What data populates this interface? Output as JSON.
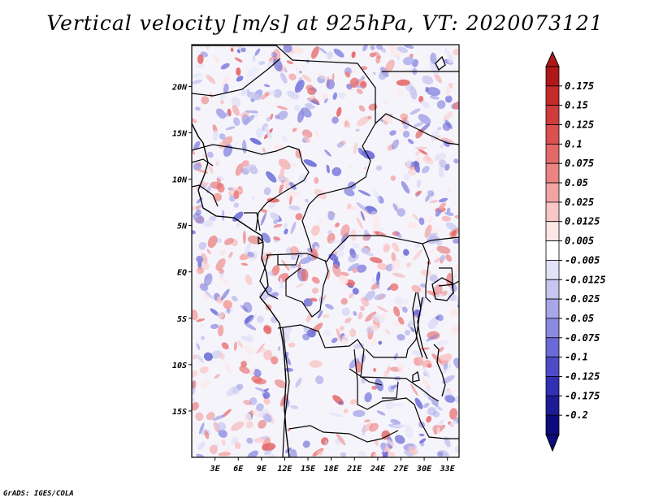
{
  "title": "Vertical velocity [m/s] at 925hPa, VT: 2020073121",
  "credit": "GrADS: IGES/COLA",
  "map": {
    "lat_labels": [
      "20N",
      "15N",
      "10N",
      "5N",
      "EQ",
      "5S",
      "10S",
      "15S"
    ],
    "lat_values": [
      20,
      15,
      10,
      5,
      0,
      -5,
      -10,
      -15
    ],
    "lon_labels": [
      "3E",
      "6E",
      "9E",
      "12E",
      "15E",
      "18E",
      "21E",
      "24E",
      "27E",
      "30E",
      "33E"
    ],
    "lon_values": [
      3,
      6,
      9,
      12,
      15,
      18,
      21,
      24,
      27,
      30,
      33
    ],
    "lon_range": [
      0,
      34.5
    ],
    "lat_range": [
      -20,
      24.5
    ]
  },
  "colorbar": {
    "labels": [
      "0.175",
      "0.15",
      "0.125",
      "0.1",
      "0.075",
      "0.05",
      "0.025",
      "0.0125",
      "0.005",
      "-0.005",
      "-0.0125",
      "-0.025",
      "-0.05",
      "-0.075",
      "-0.1",
      "-0.125",
      "-0.175",
      "-0.2"
    ],
    "colors": [
      "#b01818",
      "#c42a2a",
      "#d03c3c",
      "#dc5050",
      "#e46868",
      "#ec8484",
      "#f2a4a4",
      "#f8c6c6",
      "#fce6e6",
      "#ffffff",
      "#e2e2f8",
      "#c6c6f0",
      "#a6a6e8",
      "#8a8ae0",
      "#6a6ad6",
      "#4c4cc8",
      "#3030b4",
      "#1c1c98",
      "#0c0c7c"
    ]
  }
}
